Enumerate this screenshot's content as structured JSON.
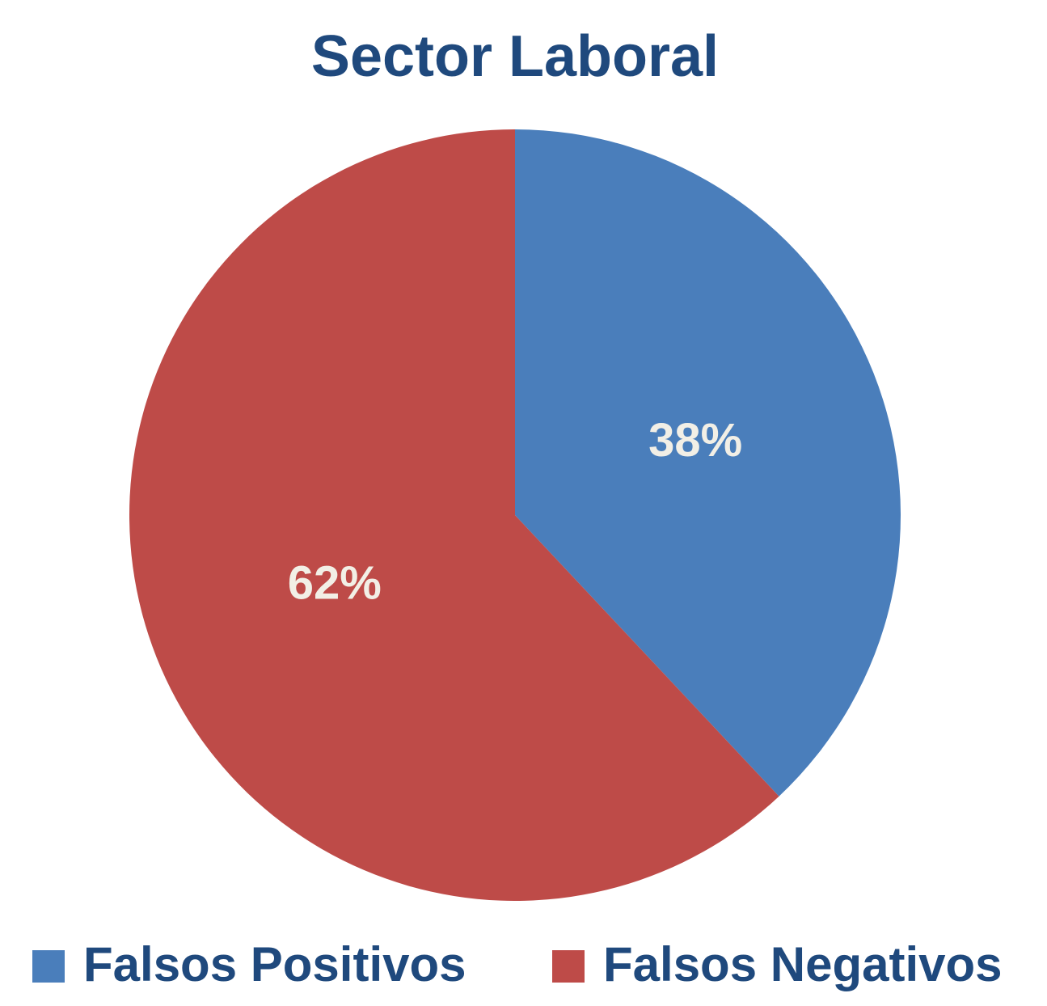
{
  "chart_data": {
    "type": "pie",
    "title": "Sector Laboral",
    "categories": [
      "Falsos Positivos",
      "Falsos Negativos"
    ],
    "values": [
      38,
      62
    ],
    "value_labels": [
      "38%",
      "62%"
    ],
    "colors": [
      "#4a7ebb",
      "#be4b48"
    ],
    "legend": "bottom"
  }
}
